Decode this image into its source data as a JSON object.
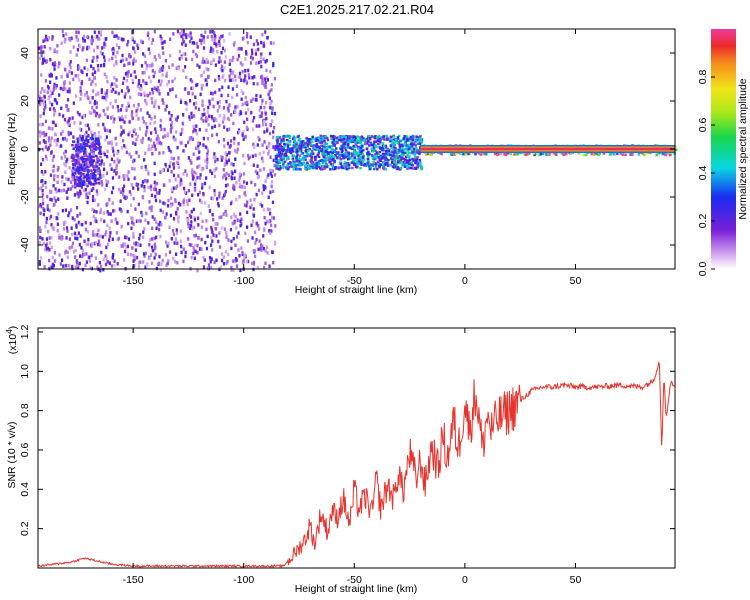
{
  "title": "C2E1.2025.217.02.21.R04",
  "chart_data": [
    {
      "type": "heatmap",
      "title": "C2E1.2025.217.02.21.R04",
      "xlabel": "Height of straight line (km)",
      "ylabel": "Frequency (Hz)",
      "xlim": [
        -193,
        95
      ],
      "ylim": [
        -50,
        50
      ],
      "xticks": [
        "-150",
        "-100",
        "-50",
        "0",
        "50"
      ],
      "xtick_values": [
        -150,
        -100,
        -50,
        0,
        50
      ],
      "yticks": [
        "-40",
        "-20",
        "0",
        "20",
        "40"
      ],
      "ytick_values": [
        -40,
        -20,
        0,
        20,
        40
      ],
      "colorbar": {
        "label": "Normalized spectral amplitude",
        "ticks": [
          "0.0",
          "0.2",
          "0.4",
          "0.6",
          "0.8"
        ],
        "tick_values": [
          0.0,
          0.2,
          0.4,
          0.6,
          0.8
        ],
        "range": [
          0,
          1
        ]
      },
      "regions": [
        {
          "x_range": [
            -193,
            -86
          ],
          "y_range": [
            -50,
            50
          ],
          "amplitude": 0.2,
          "description_kind": "noise"
        },
        {
          "x_range": [
            -178,
            -165
          ],
          "y_range": [
            -15,
            5
          ],
          "amplitude": 0.25
        },
        {
          "x_range": [
            -86,
            -20
          ],
          "y_range": [
            -8,
            6
          ],
          "amplitude": 0.4
        },
        {
          "x_range": [
            -20,
            95
          ],
          "y_range": [
            -2,
            2
          ],
          "amplitude": 0.95
        }
      ],
      "grid": false
    },
    {
      "type": "line",
      "xlabel": "Height of straight line (km)",
      "ylabel": "SNR (10 * v/v)",
      "y_multiplier": "(x10",
      "y_multiplier_exp": "4",
      "y_multiplier_close": ")",
      "xlim": [
        -193,
        95
      ],
      "ylim": [
        0,
        1.22
      ],
      "xticks": [
        "-150",
        "-100",
        "-50",
        "0",
        "50"
      ],
      "xtick_values": [
        -150,
        -100,
        -50,
        0,
        50
      ],
      "yticks": [
        "0.2",
        "0.4",
        "0.6",
        "0.8",
        "1.0",
        "1.2"
      ],
      "ytick_values": [
        0.2,
        0.4,
        0.6,
        0.8,
        1.0,
        1.2
      ],
      "color": "#e8322c",
      "series": [
        {
          "x": [
            -193,
            -185,
            -178,
            -172,
            -168,
            -160,
            -150,
            -140,
            -130,
            -120,
            -110,
            -100,
            -90,
            -82,
            -78,
            -75,
            -72,
            -70,
            -68,
            -65,
            -62,
            -60,
            -58,
            -55,
            -52,
            -50,
            -48,
            -45,
            -42,
            -40,
            -38,
            -35,
            -32,
            -30,
            -28,
            -25,
            -22,
            -20,
            -18,
            -15,
            -12,
            -10,
            -8,
            -5,
            -3,
            0,
            2,
            5,
            8,
            10,
            12,
            15,
            18,
            20,
            25,
            30,
            35,
            40,
            45,
            50,
            60,
            70,
            80,
            85,
            88,
            89,
            90,
            91,
            93,
            95
          ],
          "y": [
            0.01,
            0.02,
            0.03,
            0.05,
            0.04,
            0.02,
            0.01,
            0.01,
            0.01,
            0.01,
            0.01,
            0.01,
            0.01,
            0.01,
            0.06,
            0.1,
            0.15,
            0.22,
            0.12,
            0.28,
            0.18,
            0.3,
            0.25,
            0.35,
            0.22,
            0.4,
            0.3,
            0.36,
            0.28,
            0.45,
            0.3,
            0.42,
            0.35,
            0.5,
            0.38,
            0.58,
            0.45,
            0.55,
            0.42,
            0.62,
            0.5,
            0.68,
            0.55,
            0.75,
            0.6,
            0.85,
            0.7,
            0.9,
            0.6,
            0.78,
            0.7,
            0.76,
            0.78,
            0.8,
            0.85,
            0.9,
            0.92,
            0.92,
            0.93,
            0.92,
            0.92,
            0.93,
            0.92,
            0.95,
            1.05,
            0.6,
            1.0,
            0.75,
            0.95,
            0.92
          ]
        }
      ],
      "grid": false
    }
  ]
}
